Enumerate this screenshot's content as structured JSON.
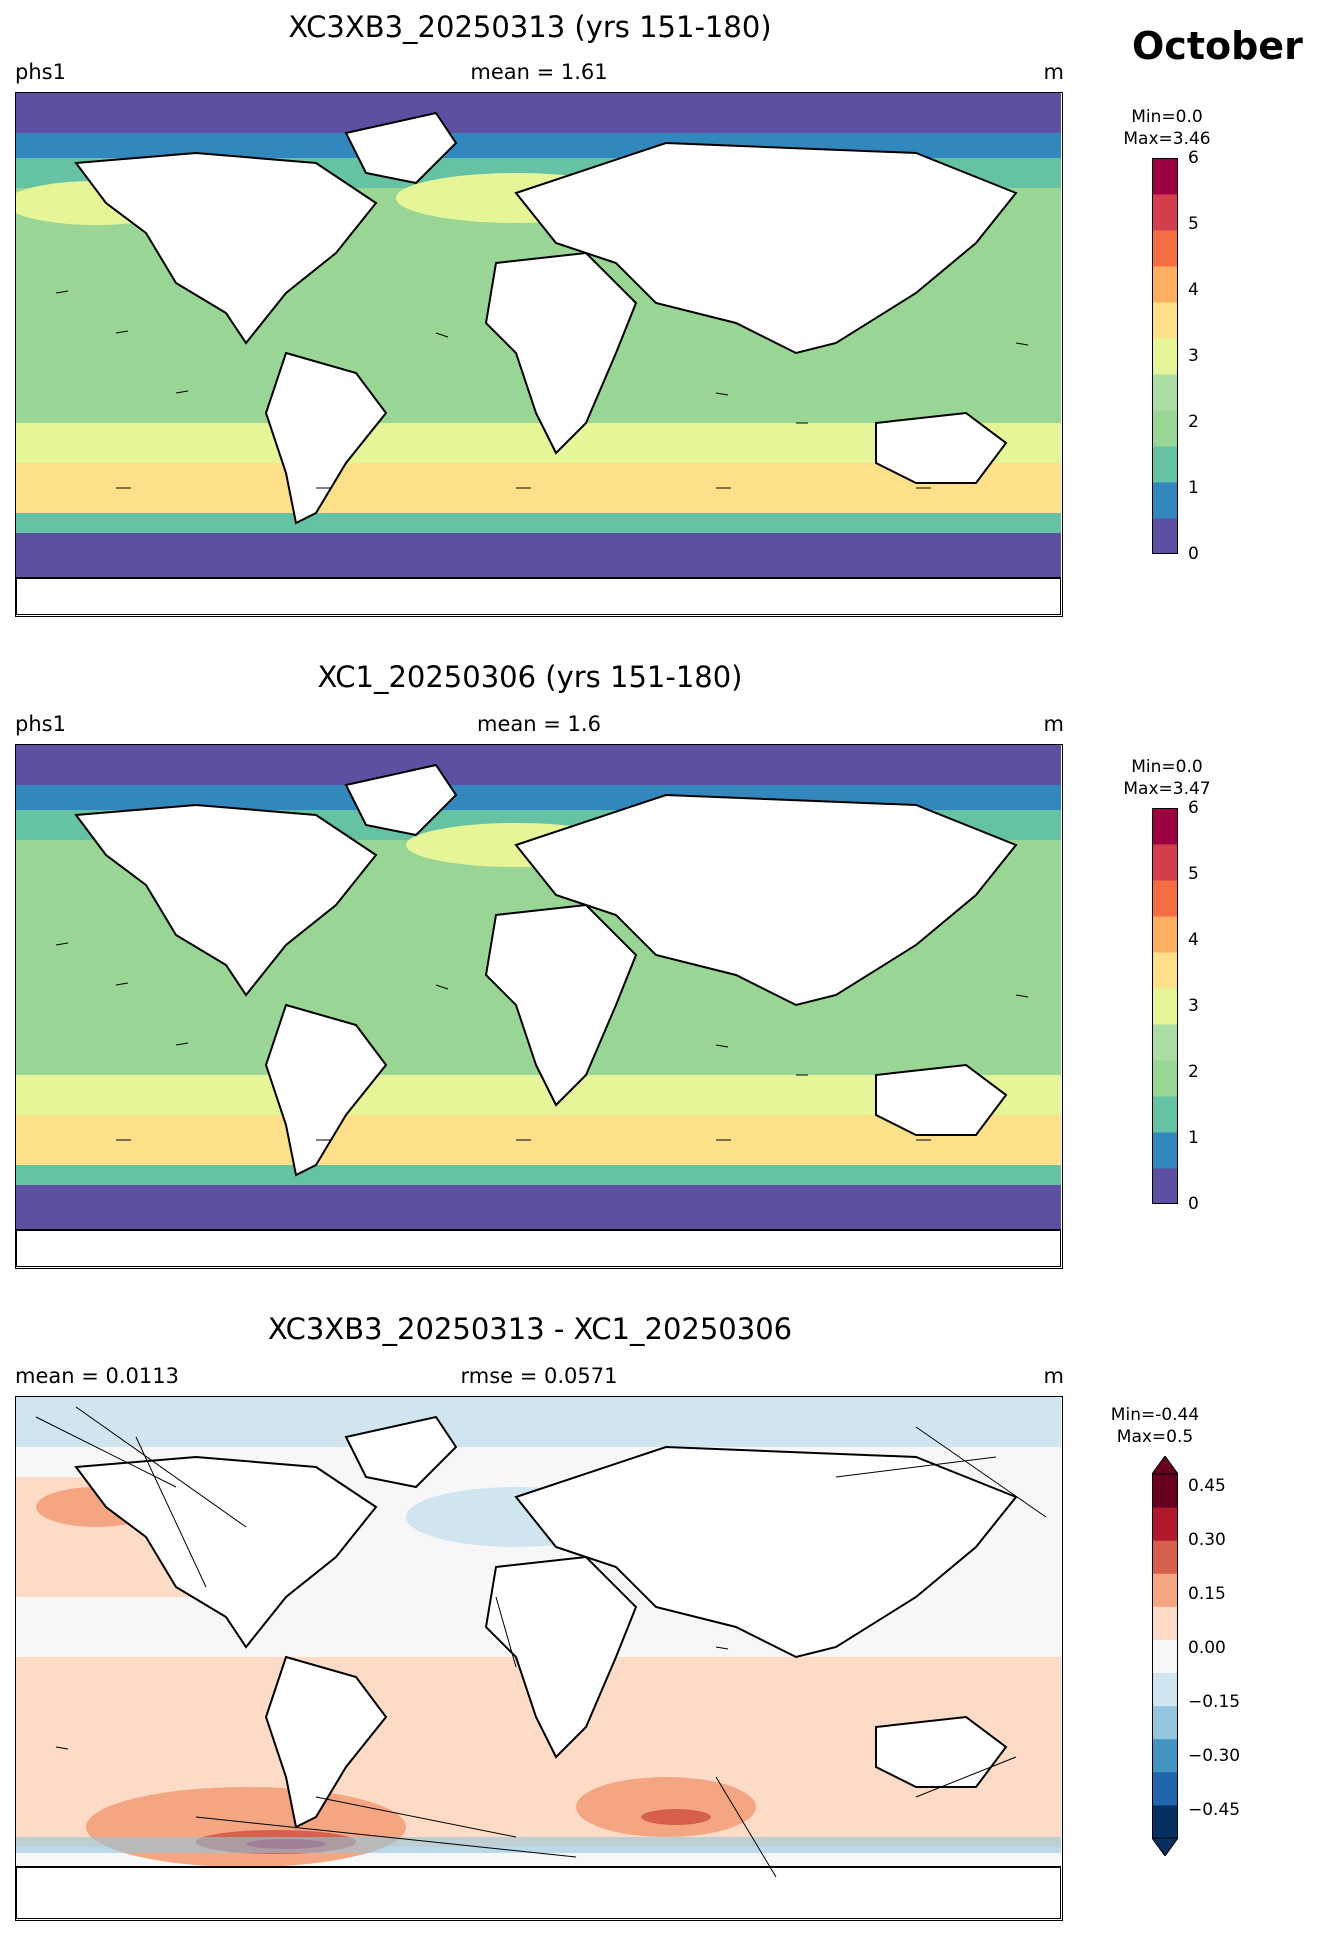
{
  "header": {
    "month": "October"
  },
  "panels": [
    {
      "title": "XC3XB3_20250313 (yrs 151-180)",
      "left_label": "phs1",
      "mid_label": "mean = 1.61",
      "unit": "m",
      "colorbar": {
        "min_label": "Min=0.0",
        "max_label": "Max=3.46",
        "ticks": [
          "6",
          "5",
          "4",
          "3",
          "2",
          "1",
          "0"
        ]
      }
    },
    {
      "title": "XC1_20250306 (yrs 151-180)",
      "left_label": "phs1",
      "mid_label": "mean = 1.6",
      "unit": "m",
      "colorbar": {
        "min_label": "Min=0.0",
        "max_label": "Max=3.47",
        "ticks": [
          "6",
          "5",
          "4",
          "3",
          "2",
          "1",
          "0"
        ]
      }
    },
    {
      "title": "XC3XB3_20250313 - XC1_20250306",
      "left_label": "mean = 0.0113",
      "mid_label": "rmse = 0.0571",
      "unit": "m",
      "colorbar": {
        "min_label": "Min=-0.44",
        "max_label": "Max=0.5",
        "ticks": [
          "0.45",
          "0.30",
          "0.15",
          "0.00",
          "−0.15",
          "−0.30",
          "−0.45"
        ]
      }
    }
  ],
  "colors": {
    "seq": [
      "#5e4fa2",
      "#3288bd",
      "#66c2a5",
      "#99d594",
      "#abdda4",
      "#e6f598",
      "#fee08b",
      "#fdae61",
      "#f46d43",
      "#d53e4f",
      "#9e0142"
    ],
    "div": [
      "#053061",
      "#2166ac",
      "#4393c3",
      "#92c5de",
      "#d1e5f0",
      "#f7f7f7",
      "#fddbc7",
      "#f4a582",
      "#d6604d",
      "#b2182b",
      "#67001f"
    ]
  }
}
